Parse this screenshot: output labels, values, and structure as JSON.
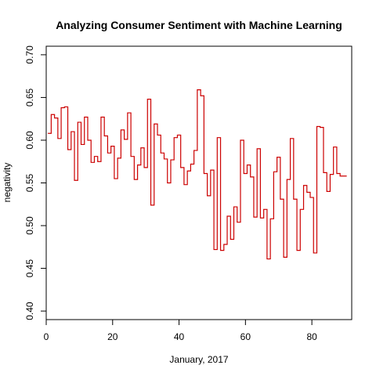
{
  "chart_data": {
    "type": "line",
    "style": "step",
    "title": "Analyzing Consumer Sentiment with Machine Learning",
    "xlabel": "January, 2017",
    "ylabel": "negativity",
    "xlim": [
      0,
      92
    ],
    "ylim": [
      0.39,
      0.71
    ],
    "x_ticks": [
      0,
      20,
      40,
      60,
      80
    ],
    "y_ticks": [
      0.4,
      0.45,
      0.5,
      0.55,
      0.6,
      0.65,
      0.7
    ],
    "x_tick_labels": [
      "0",
      "20",
      "40",
      "60",
      "80"
    ],
    "y_tick_labels": [
      "0.40",
      "0.45",
      "0.50",
      "0.55",
      "0.60",
      "0.65",
      "0.70"
    ],
    "grid": false,
    "legend": "none",
    "series": [
      {
        "color": "#cc0000",
        "x": [
          1,
          2,
          3,
          4,
          5,
          6,
          7,
          8,
          9,
          10,
          11,
          12,
          13,
          14,
          15,
          16,
          17,
          18,
          19,
          20,
          21,
          22,
          23,
          24,
          25,
          26,
          27,
          28,
          29,
          30,
          31,
          32,
          33,
          34,
          35,
          36,
          37,
          38,
          39,
          40,
          41,
          42,
          43,
          44,
          45,
          46,
          47,
          48,
          49,
          50,
          51,
          52,
          53,
          54,
          55,
          56,
          57,
          58,
          59,
          60,
          61,
          62,
          63,
          64,
          65,
          66,
          67,
          68,
          69,
          70,
          71,
          72,
          73,
          74,
          75,
          76,
          77,
          78,
          79,
          80,
          81,
          82,
          83,
          84,
          85,
          86,
          87,
          88,
          89,
          90
        ],
        "y": [
          0.608,
          0.63,
          0.626,
          0.602,
          0.638,
          0.639,
          0.589,
          0.61,
          0.553,
          0.621,
          0.595,
          0.627,
          0.6,
          0.574,
          0.581,
          0.575,
          0.627,
          0.605,
          0.585,
          0.593,
          0.555,
          0.579,
          0.612,
          0.601,
          0.632,
          0.581,
          0.554,
          0.571,
          0.591,
          0.568,
          0.648,
          0.524,
          0.619,
          0.606,
          0.585,
          0.578,
          0.55,
          0.577,
          0.603,
          0.606,
          0.568,
          0.548,
          0.564,
          0.572,
          0.588,
          0.659,
          0.652,
          0.561,
          0.535,
          0.565,
          0.472,
          0.603,
          0.471,
          0.478,
          0.511,
          0.484,
          0.522,
          0.504,
          0.6,
          0.561,
          0.571,
          0.557,
          0.51,
          0.59,
          0.509,
          0.519,
          0.461,
          0.508,
          0.563,
          0.58,
          0.531,
          0.463,
          0.554,
          0.602,
          0.531,
          0.471,
          0.519,
          0.547,
          0.539,
          0.533,
          0.468,
          0.616,
          0.615,
          0.562,
          0.54,
          0.56,
          0.592,
          0.561,
          0.558,
          0.558
        ]
      }
    ]
  }
}
